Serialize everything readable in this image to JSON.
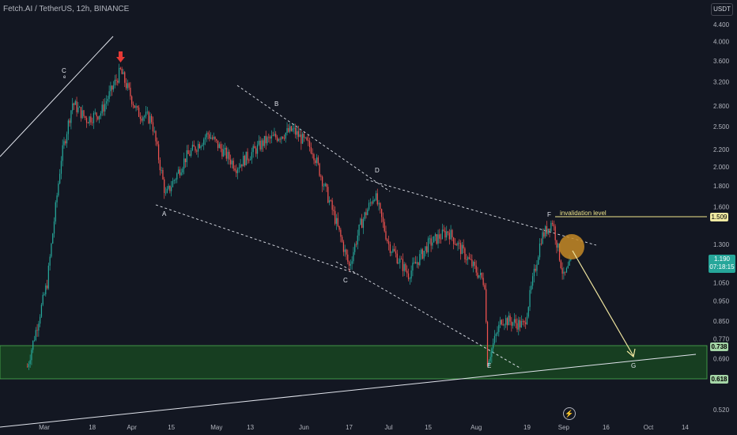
{
  "header": {
    "title": "Fetch.AI / TetherUS, 12h, BINANCE",
    "currency": "USDT"
  },
  "annotations": {
    "invalidation_label": "invalidation level",
    "wave_labels": [
      "C",
      "e",
      "B",
      "A",
      "D",
      "C",
      "F",
      "E",
      "G"
    ]
  },
  "price_tags": {
    "invalidation": "1.509",
    "last_price": "1.190",
    "countdown": "07:18:15",
    "zone_top": "0.738",
    "zone_bottom": "0.618"
  },
  "colors": {
    "background": "#131722",
    "up": "#26a69a",
    "down": "#ef5350",
    "zone": "#1b5e20",
    "zone_border": "#4caf50",
    "invalidation": "#f0e68c",
    "target_circle": "#c68a26"
  },
  "icons": [
    "lightning-icon",
    "red-arrow-down-icon"
  ],
  "chart_data": {
    "type": "candlestick",
    "title": "Fetch.AI / TetherUS, 12h, BINANCE",
    "y_scale": "log",
    "y_ticks": [
      "4.400",
      "4.000",
      "3.600",
      "3.200",
      "2.800",
      "2.500",
      "2.200",
      "2.000",
      "1.800",
      "1.600",
      "1.300",
      "1.050",
      "0.950",
      "0.850",
      "0.770",
      "0.690",
      "0.520"
    ],
    "x_ticks": [
      "Mar",
      "18",
      "Apr",
      "15",
      "May",
      "13",
      "Jun",
      "17",
      "Jul",
      "15",
      "Aug",
      "19",
      "Sep",
      "16",
      "Oct",
      "14"
    ],
    "series": [
      {
        "name": "FETUSDT",
        "approx_close_path": [
          [
            "2024-02-24",
            0.66
          ],
          [
            "2024-03-02",
            1.05
          ],
          [
            "2024-03-07",
            2.1
          ],
          [
            "2024-03-11",
            2.85
          ],
          [
            "2024-03-16",
            2.6
          ],
          [
            "2024-03-21",
            2.7
          ],
          [
            "2024-03-28",
            3.4
          ],
          [
            "2024-04-03",
            2.7
          ],
          [
            "2024-04-08",
            2.6
          ],
          [
            "2024-04-13",
            1.7
          ],
          [
            "2024-04-20",
            2.1
          ],
          [
            "2024-04-28",
            2.4
          ],
          [
            "2024-05-08",
            2.0
          ],
          [
            "2024-05-18",
            2.3
          ],
          [
            "2024-05-28",
            2.45
          ],
          [
            "2024-06-04",
            2.2
          ],
          [
            "2024-06-12",
            1.5
          ],
          [
            "2024-06-17",
            1.15
          ],
          [
            "2024-06-21",
            1.45
          ],
          [
            "2024-06-26",
            1.72
          ],
          [
            "2024-07-01",
            1.3
          ],
          [
            "2024-07-08",
            1.1
          ],
          [
            "2024-07-15",
            1.3
          ],
          [
            "2024-07-22",
            1.4
          ],
          [
            "2024-07-29",
            1.2
          ],
          [
            "2024-08-04",
            1.05
          ],
          [
            "2024-08-05",
            0.68
          ],
          [
            "2024-08-10",
            0.86
          ],
          [
            "2024-08-18",
            0.83
          ],
          [
            "2024-08-24",
            1.35
          ],
          [
            "2024-08-28",
            1.48
          ],
          [
            "2024-09-01",
            1.08
          ],
          [
            "2024-09-04",
            1.19
          ]
        ]
      }
    ],
    "levels": {
      "invalidation": 1.509,
      "demand_zone": [
        0.618,
        0.738
      ]
    },
    "projection": {
      "from_price": 1.27,
      "to_label": "G",
      "to_price": 0.7
    }
  }
}
